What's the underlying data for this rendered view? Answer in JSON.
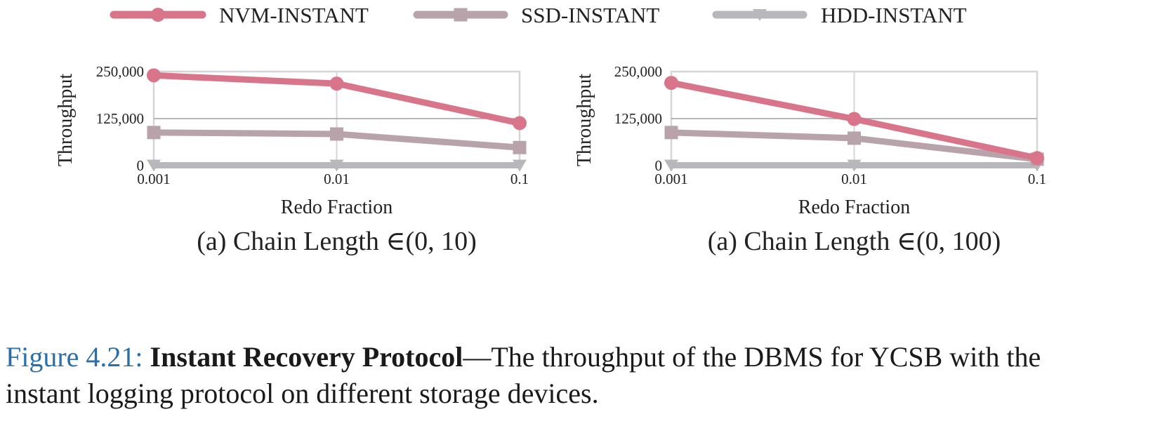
{
  "legend": [
    {
      "label": "NVM-INSTANT",
      "color": "#d8758a",
      "marker": "circle"
    },
    {
      "label": "SSD-INSTANT",
      "color": "#b9a3ab",
      "marker": "square"
    },
    {
      "label": "HDD-INSTANT",
      "color": "#b8b8bc",
      "marker": "triangle-down"
    }
  ],
  "chart_data": [
    {
      "type": "line",
      "x": [
        0.001,
        0.01,
        0.1
      ],
      "x_tick_labels": [
        "0.001",
        "0.01",
        "0.1"
      ],
      "x_scale": "log",
      "xlabel": "Redo Fraction",
      "ylabel": "Throughput",
      "ylim": [
        0,
        250000
      ],
      "y_ticks": [
        0,
        125000,
        250000
      ],
      "y_tick_labels": [
        "0",
        "125,000",
        "250,000"
      ],
      "grid": true,
      "legend_position": "top",
      "subcaption": "(a) Chain Length ∈(0, 10)",
      "series": [
        {
          "name": "NVM-INSTANT",
          "values": [
            240000,
            218000,
            113000
          ]
        },
        {
          "name": "SSD-INSTANT",
          "values": [
            88000,
            84000,
            48000
          ]
        },
        {
          "name": "HDD-INSTANT",
          "values": [
            1000,
            1000,
            1000
          ]
        }
      ]
    },
    {
      "type": "line",
      "x": [
        0.001,
        0.01,
        0.1
      ],
      "x_tick_labels": [
        "0.001",
        "0.01",
        "0.1"
      ],
      "x_scale": "log",
      "xlabel": "Redo Fraction",
      "ylabel": "Throughput",
      "ylim": [
        0,
        250000
      ],
      "y_ticks": [
        0,
        125000,
        250000
      ],
      "y_tick_labels": [
        "0",
        "125,000",
        "250,000"
      ],
      "grid": true,
      "legend_position": "top",
      "subcaption": "(a) Chain Length ∈(0, 100)",
      "series": [
        {
          "name": "NVM-INSTANT",
          "values": [
            220000,
            124000,
            20000
          ]
        },
        {
          "name": "SSD-INSTANT",
          "values": [
            88000,
            73000,
            17000
          ]
        },
        {
          "name": "HDD-INSTANT",
          "values": [
            1000,
            1000,
            1000
          ]
        }
      ]
    }
  ],
  "caption": {
    "number": "Figure 4.21:",
    "title": "Instant Recovery Protocol",
    "text_line1": "—The throughput of the DBMS for YCSB with the",
    "text_line2": "instant logging protocol on different storage devices."
  }
}
